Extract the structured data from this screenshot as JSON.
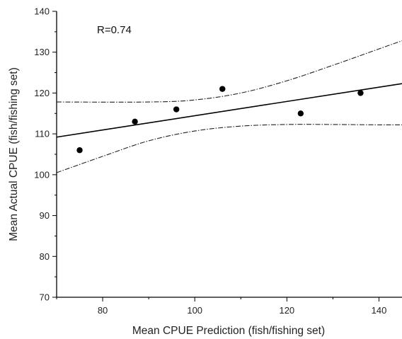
{
  "chart_data": {
    "type": "scatter",
    "title": "",
    "xlabel": "Mean CPUE Prediction (fish/fishing set)",
    "ylabel": "Mean Actual CPUE (fish/fishing set)",
    "xlim": [
      70,
      145
    ],
    "ylim": [
      70,
      140
    ],
    "x_ticks": [
      80,
      100,
      120,
      140
    ],
    "y_ticks": [
      70,
      80,
      90,
      100,
      110,
      120,
      130,
      140
    ],
    "annotation": "R=0.74",
    "points": [
      {
        "x": 75,
        "y": 106
      },
      {
        "x": 87,
        "y": 113
      },
      {
        "x": 96,
        "y": 116
      },
      {
        "x": 106,
        "y": 121
      },
      {
        "x": 123,
        "y": 115
      },
      {
        "x": 136,
        "y": 120
      }
    ],
    "fit_line": {
      "x": [
        70,
        145
      ],
      "y": [
        109.2,
        122.3
      ]
    },
    "confidence_band": {
      "upper": {
        "x": [
          70,
          90,
          100,
          110,
          120,
          130,
          140,
          145
        ],
        "y": [
          117.8,
          117.8,
          118.3,
          120.0,
          123.0,
          126.8,
          130.8,
          132.8
        ]
      },
      "lower": {
        "x": [
          70,
          80,
          90,
          100,
          110,
          120,
          130,
          140,
          145
        ],
        "y": [
          100.5,
          104.5,
          108.3,
          110.7,
          111.9,
          112.3,
          112.3,
          112.2,
          112.2
        ]
      }
    },
    "grid": false,
    "legend": "none"
  }
}
